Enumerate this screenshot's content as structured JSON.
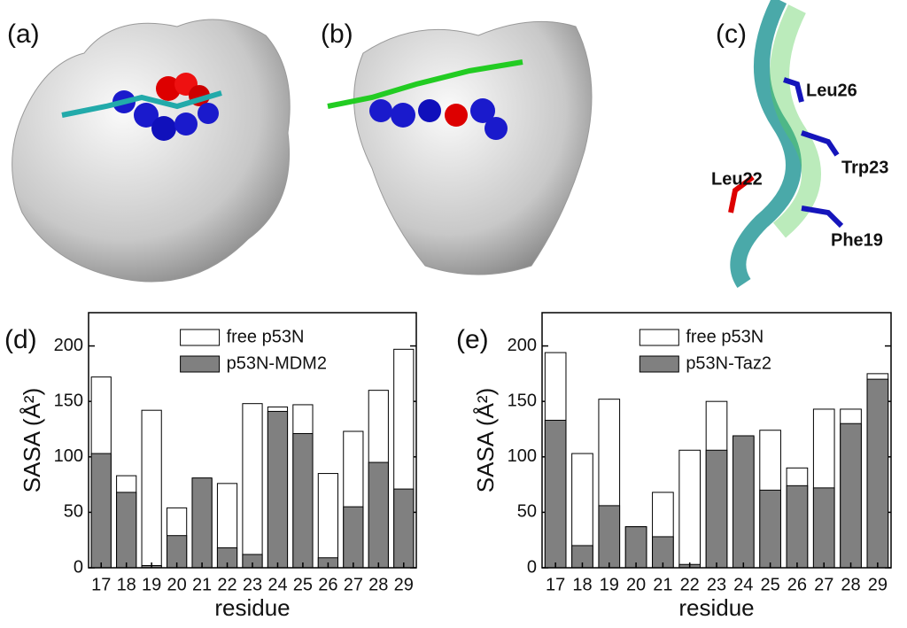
{
  "panels": [
    {
      "label": "(a)"
    },
    {
      "label": "(b)"
    },
    {
      "label": "(c)",
      "annotations": [
        "Leu26",
        "Trp23",
        "Leu22",
        "Phe19"
      ]
    }
  ],
  "chart_data": [
    {
      "type": "bar",
      "panel_label": "(d)",
      "xlabel": "residue",
      "ylabel": "SASA (Å²)",
      "categories": [
        "17",
        "18",
        "19",
        "20",
        "21",
        "22",
        "23",
        "24",
        "25",
        "26",
        "27",
        "28",
        "29"
      ],
      "series": [
        {
          "name": "free p53N",
          "color": "#ffffff",
          "values": [
            172,
            83,
            142,
            54,
            80,
            76,
            148,
            145,
            147,
            85,
            123,
            160,
            197
          ]
        },
        {
          "name": "p53N-MDM2",
          "color": "#808080",
          "values": [
            103,
            68,
            2,
            29,
            81,
            18,
            12,
            141,
            121,
            9,
            55,
            95,
            71
          ]
        }
      ],
      "ylim": [
        0,
        230
      ],
      "yticks": [
        0,
        50,
        100,
        150,
        200
      ],
      "legend": "top"
    },
    {
      "type": "bar",
      "panel_label": "(e)",
      "xlabel": "residue",
      "ylabel": "SASA (Å²)",
      "categories": [
        "17",
        "18",
        "19",
        "20",
        "21",
        "22",
        "23",
        "24",
        "25",
        "26",
        "27",
        "28",
        "29"
      ],
      "series": [
        {
          "name": "free p53N",
          "color": "#ffffff",
          "values": [
            194,
            103,
            152,
            37,
            68,
            106,
            150,
            118,
            124,
            90,
            143,
            143,
            175
          ]
        },
        {
          "name": "p53N-Taz2",
          "color": "#808080",
          "values": [
            133,
            20,
            56,
            37,
            28,
            3,
            106,
            119,
            70,
            74,
            72,
            130,
            170
          ]
        }
      ],
      "ylim": [
        0,
        230
      ],
      "yticks": [
        0,
        50,
        100,
        150,
        200
      ],
      "legend": "top"
    }
  ]
}
